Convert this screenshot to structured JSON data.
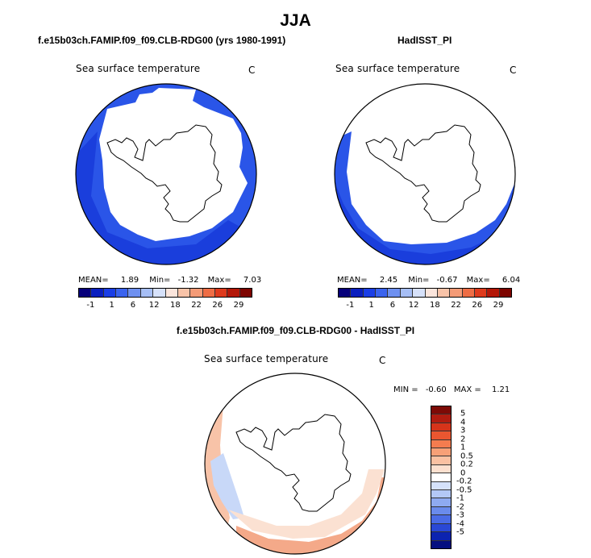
{
  "title": "JJA",
  "panels": {
    "model": {
      "title": "f.e15b03ch.FAMIP.f09_f09.CLB-RDG00 (yrs 1980-1991)",
      "var_title": "Sea surface temperature",
      "units": "C",
      "stats": {
        "mean_label": "MEAN=",
        "mean": "1.89",
        "min_label": "Min=",
        "min": "-1.32",
        "max_label": "Max=",
        "max": "7.03"
      }
    },
    "obs": {
      "title": "HadISST_PI",
      "var_title": "Sea surface temperature",
      "units": "C",
      "stats": {
        "mean_label": "MEAN=",
        "mean": "2.45",
        "min_label": "Min=",
        "min": "-0.67",
        "max_label": "Max=",
        "max": "6.04"
      }
    },
    "diff": {
      "title": "f.e15b03ch.FAMIP.f09_f09.CLB-RDG00 - HadISST_PI",
      "var_title": "Sea surface temperature",
      "units": "C",
      "stats": {
        "min_label": "MIN =",
        "min": "-0.60",
        "max_label": "MAX =",
        "max": "1.21"
      }
    }
  },
  "abs_colorbar": {
    "colors": [
      "#06007a",
      "#0a1fbf",
      "#1a3ee6",
      "#3a63ee",
      "#6e90f0",
      "#a6bef5",
      "#d6e1fa",
      "#fbe5dc",
      "#f8c3a8",
      "#f49b77",
      "#ee6d45",
      "#de3a1c",
      "#b31708",
      "#7d0400"
    ],
    "labels": [
      "-1",
      "1",
      "6",
      "12",
      "18",
      "22",
      "26",
      "29"
    ]
  },
  "diff_colorbar": {
    "colors": [
      "#7d0a06",
      "#b01c10",
      "#d6341a",
      "#ea5630",
      "#f47c4f",
      "#f7a077",
      "#fac1a2",
      "#fce0cf",
      "#ffffff",
      "#d5e2fb",
      "#b3c8f6",
      "#8eaaf1",
      "#6a8bec",
      "#4a6be6",
      "#2a48d6",
      "#0c23b0",
      "#050f80"
    ],
    "labels": [
      "5",
      "4",
      "3",
      "2",
      "1",
      "0.5",
      "0.2",
      "0",
      "-0.2",
      "-0.5",
      "-1",
      "-2",
      "-3",
      "-4",
      "-5"
    ]
  }
}
